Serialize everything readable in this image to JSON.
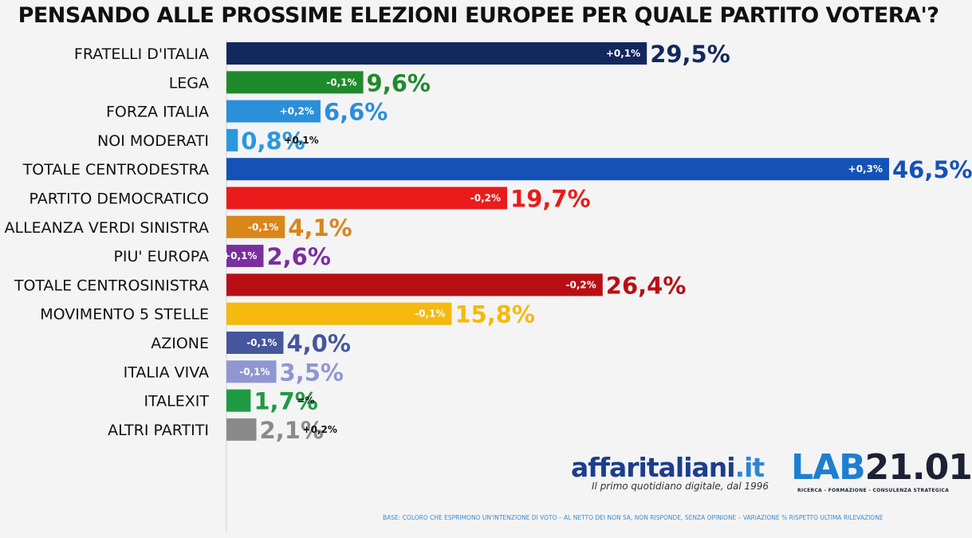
{
  "chart_data": {
    "type": "bar",
    "orientation": "horizontal",
    "title": "PENSANDO ALLE PROSSIME ELEZIONI EUROPEE PER QUALE PARTITO VOTERA'?",
    "xlabel": "",
    "ylabel": "",
    "grid": false,
    "legend": "none",
    "categories": [
      "FRATELLI D'ITALIA",
      "LEGA",
      "FORZA ITALIA",
      "NOI MODERATI",
      "TOTALE CENTRODESTRA",
      "PARTITO DEMOCRATICO",
      "ALLEANZA VERDI SINISTRA",
      "PIU' EUROPA",
      "TOTALE CENTROSINISTRA",
      "MOVIMENTO 5 STELLE",
      "AZIONE",
      "ITALIA VIVA",
      "ITALEXIT",
      "ALTRI PARTITI"
    ],
    "values": [
      29.5,
      9.6,
      6.6,
      0.8,
      46.5,
      19.7,
      4.1,
      2.6,
      26.4,
      15.8,
      4.0,
      3.5,
      1.7,
      2.1
    ],
    "value_labels": [
      "29,5%",
      "9,6%",
      "6,6%",
      "0,8%",
      "46,5%",
      "19,7%",
      "4,1%",
      "2,6%",
      "26,4%",
      "15,8%",
      "4,0%",
      "3,5%",
      "1,7%",
      "2,1%"
    ],
    "delta_labels": [
      "+0,1%",
      "-0,1%",
      "+0,2%",
      "+0,1%",
      "+0,3%",
      "-0,2%",
      "-0,1%",
      "+0,1%",
      "-0,2%",
      "-0,1%",
      "-0,1%",
      "-0,1%",
      "=%",
      "+0,2%"
    ],
    "colors": [
      "#12285c",
      "#1f8a2b",
      "#2b8fd9",
      "#2b98de",
      "#1452b8",
      "#ea1b1b",
      "#d9861b",
      "#7a2f9e",
      "#b80f14",
      "#f6b90d",
      "#46569c",
      "#8f96d2",
      "#1f9a44",
      "#8a8a8a"
    ],
    "groups": [
      [
        0,
        1,
        2,
        3,
        4
      ],
      [
        5,
        6,
        7,
        8
      ],
      [
        9,
        10,
        11,
        12
      ],
      [
        13
      ]
    ],
    "xlim": [
      0,
      46.5
    ]
  },
  "logos": {
    "affaritaliani": "affaritaliani",
    "affaritaliani_suffix": ".it",
    "tagline": "Il primo quotidiano digitale, dal 1996",
    "lab_prefix": "LAB",
    "lab_number": "21.01",
    "lab_subtitle": "RICERCA - FORMAZIONE - CONSULENZA STRATEGICA"
  },
  "footnote": "BASE: COLORO CHE ESPRIMONO UN'INTENZIONE DI VOTO – AL NETTO DEI NON SA, NON RISPONDE, SENZA OPINIONE – VARIAZIONE % RISPETTO ULTIMA RILEVAZIONE"
}
